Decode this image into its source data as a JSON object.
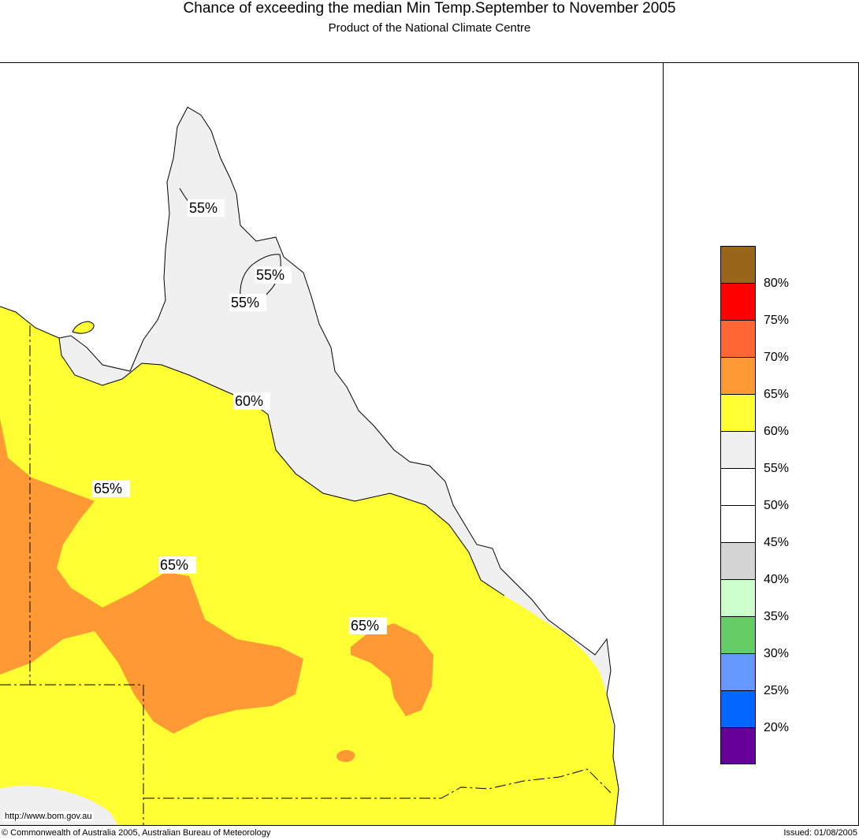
{
  "header": {
    "title": "Chance of exceeding the median Min Temp.September to November 2005",
    "subtitle": "Product of the National Climate Centre"
  },
  "map": {
    "contour_labels": [
      "55%",
      "55%",
      "55%",
      "60%",
      "65%",
      "65%",
      "65%"
    ],
    "url": "http://www.bom.gov.au",
    "colors": {
      "band_55_60": "#f0f0f0",
      "band_60_65": "#ffff33",
      "band_65_70": "#ff9933",
      "coastline": "#000000"
    }
  },
  "legend": {
    "items": [
      {
        "label": "80%",
        "color": "#996619"
      },
      {
        "label": "75%",
        "color": "#ff0000"
      },
      {
        "label": "70%",
        "color": "#ff6633"
      },
      {
        "label": "65%",
        "color": "#ff9933"
      },
      {
        "label": "60%",
        "color": "#ffff33"
      },
      {
        "label": "55%",
        "color": "#f0f0f0"
      },
      {
        "label": "50%",
        "color": "#ffffff"
      },
      {
        "label": "45%",
        "color": "#ffffff"
      },
      {
        "label": "40%",
        "color": "#d4d4d4"
      },
      {
        "label": "35%",
        "color": "#ccffcc"
      },
      {
        "label": "30%",
        "color": "#66cc66"
      },
      {
        "label": "25%",
        "color": "#6699ff"
      },
      {
        "label": "20%",
        "color": "#0066ff"
      },
      {
        "label": "",
        "color": "#660099"
      }
    ]
  },
  "footer": {
    "copyright": "© Commonwealth of Australia 2005, Australian Bureau of Meteorology",
    "issued": "Issued: 01/08/2005"
  }
}
